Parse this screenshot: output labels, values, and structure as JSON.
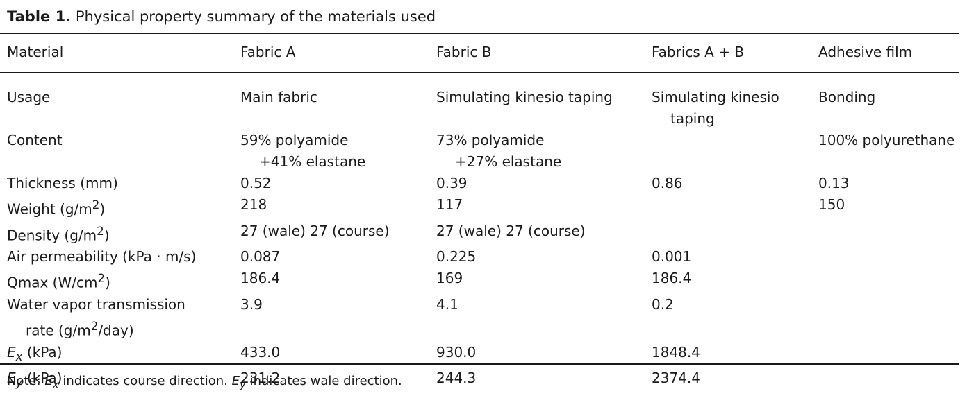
{
  "caption": {
    "label": "Table 1.",
    "text": "Physical property summary of the materials used"
  },
  "table": {
    "header": [
      "Material",
      "Fabric A",
      "Fabric B",
      "Fabrics A + B",
      "Adhesive film"
    ],
    "rows": [
      {
        "label": "Usage",
        "cells": [
          [
            "Main fabric"
          ],
          [
            "Simulating kinesio taping"
          ],
          [
            "Simulating kinesio",
            "taping"
          ],
          [
            "Bonding"
          ]
        ]
      },
      {
        "label": "Content",
        "cells": [
          [
            "59% polyamide",
            "+41% elastane"
          ],
          [
            "73% polyamide",
            "+27% elastane"
          ],
          [
            ""
          ],
          [
            "100% polyurethane"
          ]
        ]
      },
      {
        "label": "Thickness (mm)",
        "cells": [
          "0.52",
          "0.39",
          "0.86",
          "0.13"
        ]
      },
      {
        "label_pre": "Weight (g/m",
        "label_sup": "2",
        "label_post": ")",
        "cells": [
          "218",
          "117",
          "",
          "150"
        ]
      },
      {
        "label_pre": "Density (g/m",
        "label_sup": "2",
        "label_post": ")",
        "cells": [
          "27 (wale) 27 (course)",
          "27 (wale) 27 (course)",
          "",
          ""
        ]
      },
      {
        "label": "Air permeability (kPa · m/s)",
        "cells": [
          "0.087",
          "0.225",
          "0.001",
          ""
        ]
      },
      {
        "label_pre": "Qmax (W/cm",
        "label_sup": "2",
        "label_post": ")",
        "cells": [
          "186.4",
          "169",
          "186.4",
          ""
        ]
      },
      {
        "label_line1": "Water vapor transmission",
        "label_pre": "rate (g/m",
        "label_sup": "2",
        "label_post": "/day)",
        "cells": [
          "3.9",
          "4.1",
          "0.2",
          ""
        ]
      },
      {
        "label_sym": "E",
        "label_sub": "x",
        "label_post": " (kPa)",
        "cells": [
          "433.0",
          "930.0",
          "1848.4",
          ""
        ]
      },
      {
        "label_sym": "E",
        "label_sub": "y",
        "label_post": " (kPa)",
        "cells": [
          "231.2",
          "244.3",
          "2374.4",
          ""
        ]
      }
    ]
  },
  "note": {
    "prefix": "Note: ",
    "sym1": "E",
    "sub1": "x",
    "mid": " indicates course direction. ",
    "sym2": "E",
    "sub2": "y",
    "suffix": " indicates wale direction."
  }
}
